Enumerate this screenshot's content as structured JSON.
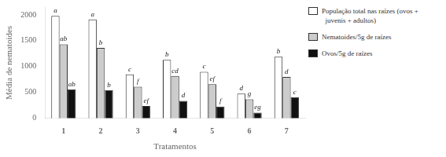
{
  "chart_data": {
    "type": "bar",
    "categories": [
      "1",
      "2",
      "3",
      "4",
      "5",
      "6",
      "7"
    ],
    "series": [
      {
        "name": "População total nas raízes (ovos +\n  juvenis + adultos)",
        "color": "#ffffff",
        "values": [
          1980,
          1910,
          850,
          1130,
          900,
          480,
          1190
        ],
        "annotations": [
          "a",
          "a",
          "c",
          "b",
          "c",
          "d",
          "b"
        ]
      },
      {
        "name": "Nematoides/5g de raízes",
        "color": "#cccccc",
        "values": [
          1430,
          1360,
          610,
          820,
          660,
          370,
          800
        ],
        "annotations": [
          "ab",
          "b",
          "f",
          "cd",
          "ef",
          "g",
          "d"
        ]
      },
      {
        "name": "Ovos/5g de raízes",
        "color": "#111111",
        "values": [
          560,
          545,
          240,
          340,
          230,
          110,
          410
        ],
        "annotations": [
          "ab",
          "b",
          "ef",
          "d",
          "f",
          "eg",
          "c"
        ]
      }
    ],
    "xlabel": "Tratamentos",
    "ylabel": "Média de nematoides",
    "ylim": [
      0,
      2150
    ],
    "yticks": [
      0,
      500,
      1000,
      1500,
      2000
    ],
    "grid": false,
    "legend": "right"
  }
}
